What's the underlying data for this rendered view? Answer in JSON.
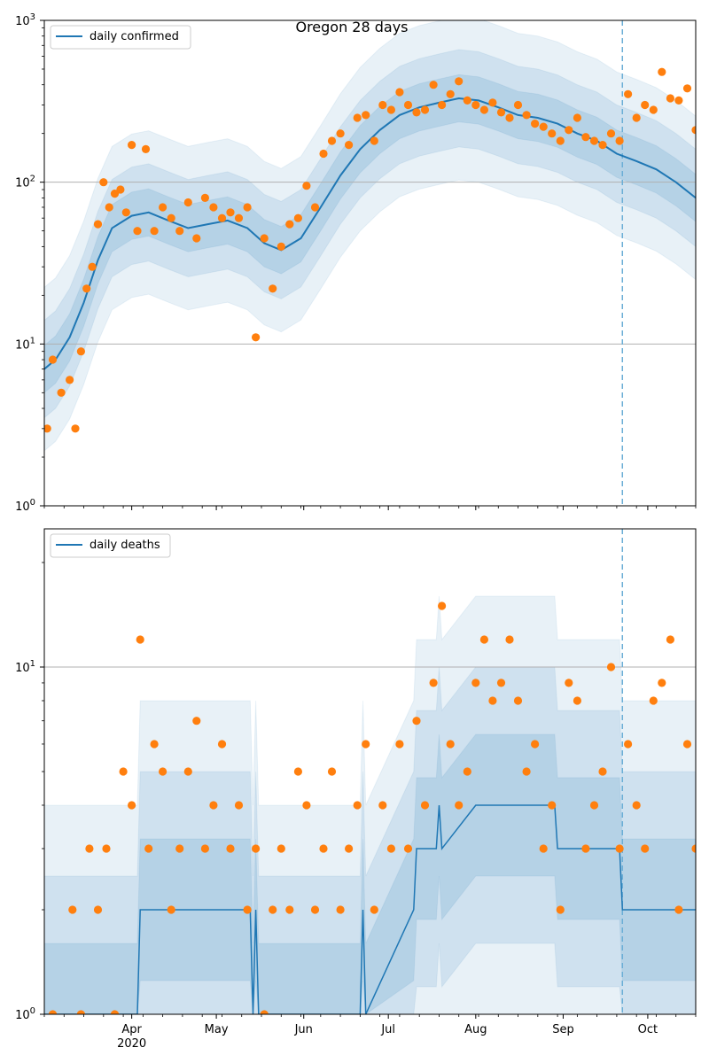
{
  "title": "Oregon 28 days",
  "chart_data": [
    {
      "type": "line",
      "panel": "top",
      "title": "Oregon 28 days",
      "yscale": "log",
      "ylim": [
        1,
        1000
      ],
      "y_ticks": [
        {
          "value": 1,
          "label": "10",
          "exp": "0"
        },
        {
          "value": 10,
          "label": "10",
          "exp": "1"
        },
        {
          "value": 100,
          "label": "10",
          "exp": "2"
        },
        {
          "value": 1000,
          "label": "10",
          "exp": "3"
        }
      ],
      "grid_y": [
        10,
        100
      ],
      "legend": {
        "label": "daily confirmed",
        "placement": "upper-left"
      },
      "forecast_start": "2020-09-22",
      "series": [
        {
          "name": "daily confirmed",
          "kind": "line",
          "color": "#1f77b4",
          "x": [
            "2020-03-01",
            "2020-03-05",
            "2020-03-10",
            "2020-03-15",
            "2020-03-20",
            "2020-03-25",
            "2020-04-01",
            "2020-04-07",
            "2020-04-14",
            "2020-04-21",
            "2020-04-28",
            "2020-05-05",
            "2020-05-12",
            "2020-05-18",
            "2020-05-24",
            "2020-05-31",
            "2020-06-07",
            "2020-06-14",
            "2020-06-21",
            "2020-06-28",
            "2020-07-05",
            "2020-07-12",
            "2020-07-19",
            "2020-07-26",
            "2020-08-02",
            "2020-08-09",
            "2020-08-16",
            "2020-08-23",
            "2020-08-30",
            "2020-09-06",
            "2020-09-13",
            "2020-09-20",
            "2020-09-27",
            "2020-10-04",
            "2020-10-11",
            "2020-10-18"
          ],
          "y": [
            7,
            8,
            11,
            18,
            33,
            52,
            62,
            65,
            58,
            52,
            55,
            58,
            52,
            42,
            38,
            45,
            70,
            110,
            160,
            210,
            260,
            290,
            310,
            330,
            320,
            290,
            260,
            250,
            230,
            200,
            180,
            150,
            135,
            120,
            100,
            80
          ]
        },
        {
          "name": "observed",
          "kind": "scatter",
          "color": "#ff7f0e",
          "x": [
            "2020-03-02",
            "2020-03-04",
            "2020-03-07",
            "2020-03-10",
            "2020-03-12",
            "2020-03-14",
            "2020-03-16",
            "2020-03-18",
            "2020-03-20",
            "2020-03-22",
            "2020-03-24",
            "2020-03-26",
            "2020-03-28",
            "2020-03-30",
            "2020-04-01",
            "2020-04-03",
            "2020-04-06",
            "2020-04-09",
            "2020-04-12",
            "2020-04-15",
            "2020-04-18",
            "2020-04-21",
            "2020-04-24",
            "2020-04-27",
            "2020-04-30",
            "2020-05-03",
            "2020-05-06",
            "2020-05-09",
            "2020-05-12",
            "2020-05-15",
            "2020-05-18",
            "2020-05-21",
            "2020-05-24",
            "2020-05-27",
            "2020-05-30",
            "2020-06-02",
            "2020-06-05",
            "2020-06-08",
            "2020-06-11",
            "2020-06-14",
            "2020-06-17",
            "2020-06-20",
            "2020-06-23",
            "2020-06-26",
            "2020-06-29",
            "2020-07-02",
            "2020-07-05",
            "2020-07-08",
            "2020-07-11",
            "2020-07-14",
            "2020-07-17",
            "2020-07-20",
            "2020-07-23",
            "2020-07-26",
            "2020-07-29",
            "2020-08-01",
            "2020-08-04",
            "2020-08-07",
            "2020-08-10",
            "2020-08-13",
            "2020-08-16",
            "2020-08-19",
            "2020-08-22",
            "2020-08-25",
            "2020-08-28",
            "2020-08-31",
            "2020-09-03",
            "2020-09-06",
            "2020-09-09",
            "2020-09-12",
            "2020-09-15",
            "2020-09-18",
            "2020-09-21",
            "2020-09-24",
            "2020-09-27",
            "2020-09-30",
            "2020-10-03",
            "2020-10-06",
            "2020-10-09",
            "2020-10-12",
            "2020-10-15",
            "2020-10-18"
          ],
          "y": [
            3,
            8,
            5,
            6,
            3,
            9,
            22,
            30,
            55,
            100,
            70,
            85,
            90,
            65,
            170,
            50,
            160,
            50,
            70,
            60,
            50,
            75,
            45,
            80,
            70,
            60,
            65,
            60,
            70,
            11,
            45,
            22,
            40,
            55,
            60,
            95,
            70,
            150,
            180,
            200,
            170,
            250,
            260,
            180,
            300,
            280,
            360,
            300,
            270,
            280,
            400,
            300,
            350,
            420,
            320,
            300,
            280,
            310,
            270,
            250,
            300,
            260,
            230,
            220,
            200,
            180,
            210,
            250,
            190,
            180,
            170,
            200,
            180,
            350,
            250,
            300,
            280,
            480,
            330,
            320,
            380,
            210
          ]
        }
      ],
      "bands": [
        {
          "name": "band-outer",
          "opacity": 0.12
        },
        {
          "name": "band-mid",
          "opacity": 0.12
        },
        {
          "name": "band-inner",
          "opacity": 0.15
        }
      ]
    },
    {
      "type": "line",
      "panel": "bottom",
      "yscale": "log",
      "y_ticks": [
        {
          "value": 1,
          "label": "10",
          "exp": "0"
        },
        {
          "value": 10,
          "label": "10",
          "exp": "1"
        }
      ],
      "grid_y": [
        10
      ],
      "legend": {
        "label": "daily deaths",
        "placement": "upper-left"
      },
      "forecast_start": "2020-09-22",
      "x_ticks": [
        {
          "date": "2020-04-01",
          "label": "Apr",
          "sub": "2020"
        },
        {
          "date": "2020-05-01",
          "label": "May",
          "sub": ""
        },
        {
          "date": "2020-06-01",
          "label": "Jun",
          "sub": ""
        },
        {
          "date": "2020-07-01",
          "label": "Jul",
          "sub": ""
        },
        {
          "date": "2020-08-01",
          "label": "Aug",
          "sub": ""
        },
        {
          "date": "2020-09-01",
          "label": "Sep",
          "sub": ""
        },
        {
          "date": "2020-10-01",
          "label": "Oct",
          "sub": ""
        }
      ],
      "series": [
        {
          "name": "daily deaths",
          "kind": "line",
          "color": "#1f77b4",
          "x": [
            "2020-03-01",
            "2020-04-03",
            "2020-04-04",
            "2020-05-13",
            "2020-05-14",
            "2020-05-15",
            "2020-05-16",
            "2020-06-21",
            "2020-06-22",
            "2020-06-23",
            "2020-07-10",
            "2020-07-11",
            "2020-07-18",
            "2020-07-19",
            "2020-07-20",
            "2020-08-01",
            "2020-08-29",
            "2020-08-30",
            "2020-09-21",
            "2020-09-22",
            "2020-10-18"
          ],
          "y": [
            1,
            1,
            2,
            2,
            1,
            2,
            1,
            1,
            2,
            1,
            2,
            3,
            3,
            4,
            3,
            4,
            4,
            3,
            3,
            2,
            2
          ]
        },
        {
          "name": "observed",
          "kind": "scatter",
          "color": "#ff7f0e",
          "x": [
            "2020-03-04",
            "2020-03-11",
            "2020-03-14",
            "2020-03-17",
            "2020-03-20",
            "2020-03-23",
            "2020-03-26",
            "2020-03-29",
            "2020-04-01",
            "2020-04-04",
            "2020-04-07",
            "2020-04-09",
            "2020-04-12",
            "2020-04-15",
            "2020-04-18",
            "2020-04-21",
            "2020-04-24",
            "2020-04-27",
            "2020-04-30",
            "2020-05-03",
            "2020-05-06",
            "2020-05-09",
            "2020-05-12",
            "2020-05-15",
            "2020-05-18",
            "2020-05-21",
            "2020-05-24",
            "2020-05-27",
            "2020-05-30",
            "2020-06-02",
            "2020-06-05",
            "2020-06-08",
            "2020-06-11",
            "2020-06-14",
            "2020-06-17",
            "2020-06-20",
            "2020-06-23",
            "2020-06-26",
            "2020-06-29",
            "2020-07-02",
            "2020-07-05",
            "2020-07-08",
            "2020-07-11",
            "2020-07-14",
            "2020-07-17",
            "2020-07-20",
            "2020-07-23",
            "2020-07-26",
            "2020-07-29",
            "2020-08-01",
            "2020-08-04",
            "2020-08-07",
            "2020-08-10",
            "2020-08-13",
            "2020-08-16",
            "2020-08-19",
            "2020-08-22",
            "2020-08-25",
            "2020-08-28",
            "2020-08-31",
            "2020-09-03",
            "2020-09-06",
            "2020-09-09",
            "2020-09-12",
            "2020-09-15",
            "2020-09-18",
            "2020-09-21",
            "2020-09-24",
            "2020-09-27",
            "2020-09-30",
            "2020-10-03",
            "2020-10-06",
            "2020-10-09",
            "2020-10-12",
            "2020-10-15",
            "2020-10-18"
          ],
          "y": [
            1,
            2,
            1,
            3,
            2,
            3,
            1,
            5,
            4,
            12,
            3,
            6,
            5,
            2,
            3,
            5,
            7,
            3,
            4,
            6,
            3,
            4,
            2,
            3,
            1,
            2,
            3,
            2,
            5,
            4,
            2,
            3,
            5,
            2,
            3,
            4,
            6,
            2,
            4,
            3,
            6,
            3,
            7,
            4,
            9,
            15,
            6,
            4,
            5,
            9,
            12,
            8,
            9,
            12,
            8,
            5,
            6,
            3,
            4,
            2,
            9,
            8,
            3,
            4,
            5,
            10,
            3,
            6,
            4,
            3,
            8,
            9,
            12,
            2,
            6,
            3
          ]
        }
      ]
    }
  ]
}
